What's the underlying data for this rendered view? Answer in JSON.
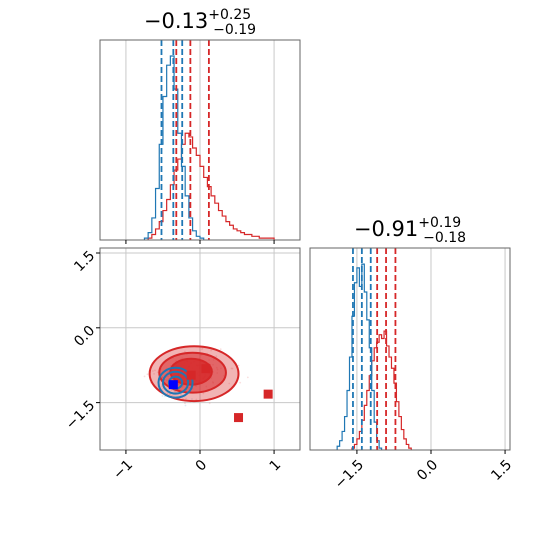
{
  "colors": {
    "blue": "#1f77b4",
    "red": "#d62728",
    "grid": "#c8c8c8",
    "axis": "#666666"
  },
  "chart_data": {
    "type": "corner",
    "parameters": [
      "x0",
      "x1"
    ],
    "titles": [
      {
        "base": "−0.13",
        "sup": "+0.25",
        "sub": "−0.19"
      },
      {
        "base": "−0.91",
        "sup": "+0.19",
        "sub": "−0.18"
      }
    ],
    "ranges": {
      "x0": [
        -1.35,
        1.35
      ],
      "x1": [
        -2.45,
        1.6
      ]
    },
    "ticks": {
      "x0": {
        "values": [
          -1,
          0,
          1
        ],
        "labels": [
          "−1",
          "0",
          "1"
        ]
      },
      "x1": {
        "values": [
          -1.5,
          0.0,
          1.5
        ],
        "labels": [
          "−1.5",
          "0.0",
          "1.5"
        ]
      }
    },
    "grid": true,
    "series": [
      {
        "color": "blue",
        "hist_x0": {
          "edges": [
            -0.75,
            -0.7,
            -0.65,
            -0.6,
            -0.55,
            -0.5,
            -0.45,
            -0.4,
            -0.35,
            -0.3,
            -0.25,
            -0.2,
            -0.15,
            -0.1,
            -0.05,
            0.0,
            0.05
          ],
          "counts": [
            0.01,
            0.04,
            0.12,
            0.28,
            0.52,
            0.78,
            0.95,
            1.0,
            0.82,
            0.58,
            0.4,
            0.24,
            0.12,
            0.05,
            0.02,
            0.01
          ]
        },
        "quantiles_x0": [
          -0.52,
          -0.36,
          -0.24
        ],
        "hist_x1": {
          "edges": [
            -1.9,
            -1.85,
            -1.8,
            -1.75,
            -1.7,
            -1.65,
            -1.6,
            -1.55,
            -1.5,
            -1.45,
            -1.4,
            -1.35,
            -1.3,
            -1.25,
            -1.2,
            -1.15,
            -1.1,
            -1.05,
            -1.0
          ],
          "counts": [
            0.02,
            0.05,
            0.1,
            0.18,
            0.32,
            0.5,
            0.72,
            0.9,
            0.98,
            0.88,
            1.0,
            0.85,
            0.7,
            0.55,
            0.32,
            0.15,
            0.05,
            0.01
          ]
        },
        "quantiles_x1": [
          -1.58,
          -1.4,
          -1.22
        ],
        "contours": [
          {
            "cx": -0.33,
            "cy": -1.1,
            "rx": 0.23,
            "ry": 0.3
          },
          {
            "cx": -0.33,
            "cy": -1.1,
            "rx": 0.17,
            "ry": 0.22
          },
          {
            "cx": -0.33,
            "cy": -1.1,
            "rx": 0.09,
            "ry": 0.12
          }
        ],
        "marker": [
          -0.36,
          -1.14
        ]
      },
      {
        "color": "red",
        "hist_x0": {
          "edges": [
            -0.7,
            -0.65,
            -0.6,
            -0.55,
            -0.5,
            -0.45,
            -0.4,
            -0.35,
            -0.3,
            -0.25,
            -0.2,
            -0.15,
            -0.1,
            -0.05,
            0.0,
            0.05,
            0.1,
            0.15,
            0.2,
            0.25,
            0.3,
            0.35,
            0.4,
            0.45,
            0.5,
            0.55,
            0.6,
            0.65,
            0.7,
            0.75,
            0.8,
            0.85,
            0.9,
            0.95,
            1.0
          ],
          "counts": [
            0.01,
            0.03,
            0.06,
            0.1,
            0.16,
            0.22,
            0.3,
            0.38,
            0.44,
            0.52,
            0.58,
            0.56,
            0.5,
            0.46,
            0.4,
            0.34,
            0.29,
            0.24,
            0.2,
            0.16,
            0.13,
            0.1,
            0.08,
            0.06,
            0.05,
            0.04,
            0.03,
            0.03,
            0.02,
            0.02,
            0.01,
            0.01,
            0.01,
            0.01
          ]
        },
        "quantiles_x0": [
          -0.32,
          -0.13,
          0.12
        ],
        "hist_x1": {
          "edges": [
            -1.6,
            -1.55,
            -1.5,
            -1.45,
            -1.4,
            -1.35,
            -1.3,
            -1.25,
            -1.2,
            -1.15,
            -1.1,
            -1.05,
            -1.0,
            -0.95,
            -0.9,
            -0.85,
            -0.8,
            -0.75,
            -0.7,
            -0.65,
            -0.6,
            -0.55,
            -0.5,
            -0.45,
            -0.4
          ],
          "counts": [
            0.01,
            0.03,
            0.06,
            0.1,
            0.16,
            0.24,
            0.32,
            0.4,
            0.48,
            0.55,
            0.58,
            0.62,
            0.6,
            0.64,
            0.56,
            0.5,
            0.44,
            0.36,
            0.26,
            0.18,
            0.11,
            0.06,
            0.03,
            0.01
          ]
        },
        "quantiles_x1": [
          -1.09,
          -0.91,
          -0.72
        ],
        "contours": [
          {
            "cx": -0.08,
            "cy": -0.92,
            "rx": 0.6,
            "ry": 0.55
          },
          {
            "cx": -0.1,
            "cy": -0.9,
            "rx": 0.45,
            "ry": 0.4
          },
          {
            "cx": -0.12,
            "cy": -0.88,
            "rx": 0.28,
            "ry": 0.26
          }
        ],
        "markers": [
          [
            -0.12,
            -0.95
          ],
          [
            0.08,
            -0.82
          ],
          [
            0.52,
            -1.8
          ],
          [
            0.92,
            -1.33
          ]
        ]
      }
    ]
  }
}
